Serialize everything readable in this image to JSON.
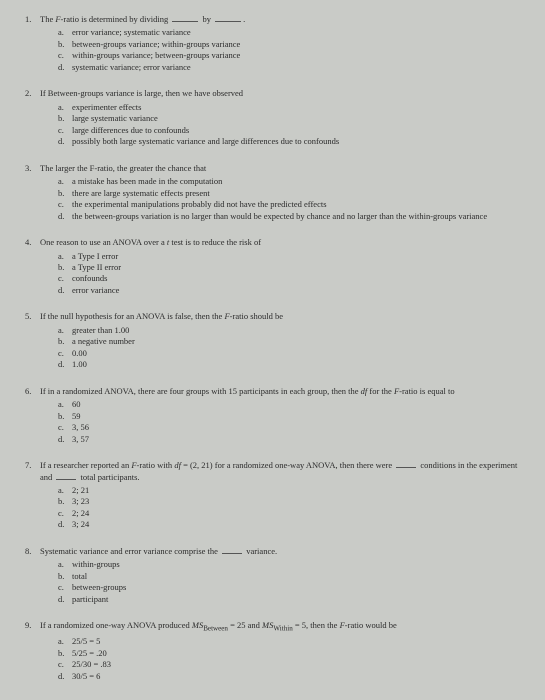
{
  "questions": [
    {
      "num": "1.",
      "stem_pre": "The ",
      "stem_em1": "F",
      "stem_mid": "-ratio is determined by dividing ",
      "stem_by": " by ",
      "opts": [
        {
          "l": "a.",
          "t": "error variance; systematic variance"
        },
        {
          "l": "b.",
          "t": "between-groups variance; within-groups variance"
        },
        {
          "l": "c.",
          "t": "within-groups variance; between-groups variance"
        },
        {
          "l": "d.",
          "t": "systematic variance; error variance"
        }
      ]
    },
    {
      "num": "2.",
      "stem": "If Between-groups variance is large, then we have observed",
      "opts": [
        {
          "l": "a.",
          "t": "experimenter effects"
        },
        {
          "l": "b.",
          "t": "large systematic variance"
        },
        {
          "l": "c.",
          "t": "large differences due to confounds"
        },
        {
          "l": "d.",
          "t": "possibly both large systematic variance and large differences due to confounds"
        }
      ]
    },
    {
      "num": "3.",
      "stem": "The larger the F-ratio, the greater the chance that",
      "opts": [
        {
          "l": "a.",
          "t": "a mistake has been made in the computation"
        },
        {
          "l": "b.",
          "t": "there are large systematic effects present"
        },
        {
          "l": "c.",
          "t": "the experimental manipulations probably did not have the predicted effects"
        },
        {
          "l": "d.",
          "t": "the between-groups variation is no larger than would be expected by chance and no larger than the within-groups variance"
        }
      ]
    },
    {
      "num": "4.",
      "stem_pre": "One reason to use an ANOVA over a ",
      "stem_em1": "t",
      "stem_post": " test is to reduce the risk of",
      "opts": [
        {
          "l": "a.",
          "t": "a Type I error"
        },
        {
          "l": "b.",
          "t": "a Type II error"
        },
        {
          "l": "c.",
          "t": "confounds"
        },
        {
          "l": "d.",
          "t": "error variance"
        }
      ]
    },
    {
      "num": "5.",
      "stem_pre": "If the null hypothesis for an ANOVA is false, then the ",
      "stem_em1": "F",
      "stem_post": "-ratio should be",
      "opts": [
        {
          "l": "a.",
          "t": "greater than 1.00"
        },
        {
          "l": "b.",
          "t": "a negative number"
        },
        {
          "l": "c.",
          "t": "0.00"
        },
        {
          "l": "d.",
          "t": "1.00"
        }
      ]
    },
    {
      "num": "6.",
      "stem_pre": "If in a randomized ANOVA, there are four groups with 15 participants in each group, then the ",
      "stem_em1": "df",
      "stem_mid": " for the ",
      "stem_em2": "F",
      "stem_post": "-ratio is equal to",
      "opts": [
        {
          "l": "a.",
          "t": "60"
        },
        {
          "l": "b.",
          "t": "59"
        },
        {
          "l": "c.",
          "t": "3, 56"
        },
        {
          "l": "d.",
          "t": "3, 57"
        }
      ]
    },
    {
      "num": "7.",
      "stem_pre": "If a researcher reported an ",
      "stem_em1": "F",
      "stem_mid1": "-ratio with ",
      "stem_em2": "df",
      "stem_mid2": " = (2, 21) for a randomized one-way ANOVA, then there were ",
      "stem_mid3": " conditions in the experiment and ",
      "stem_post": " total participants.",
      "opts": [
        {
          "l": "a.",
          "t": "2; 21"
        },
        {
          "l": "b.",
          "t": "3; 23"
        },
        {
          "l": "c.",
          "t": "2; 24"
        },
        {
          "l": "d.",
          "t": "3; 24"
        }
      ]
    },
    {
      "num": "8.",
      "stem_pre": "Systematic variance and error variance comprise the ",
      "stem_post": " variance.",
      "opts": [
        {
          "l": "a.",
          "t": "within-groups"
        },
        {
          "l": "b.",
          "t": "total"
        },
        {
          "l": "c.",
          "t": "between-groups"
        },
        {
          "l": "d.",
          "t": "participant"
        }
      ]
    },
    {
      "num": "9.",
      "stem_pre": "If a randomized one-way ANOVA produced ",
      "stem_em1": "MS",
      "stem_sub1": "Between",
      "stem_mid1": " = 25 and ",
      "stem_em2": "MS",
      "stem_sub2": "Within",
      "stem_mid2": " = 5, then the ",
      "stem_em3": "F",
      "stem_post": "-ratio would be",
      "opts": [
        {
          "l": "a.",
          "t": "25/5 = 5"
        },
        {
          "l": "b.",
          "t": "5/25 = .20"
        },
        {
          "l": "c.",
          "t": "25/30 = .83"
        },
        {
          "l": "d.",
          "t": "30/5 = 6"
        }
      ]
    }
  ]
}
